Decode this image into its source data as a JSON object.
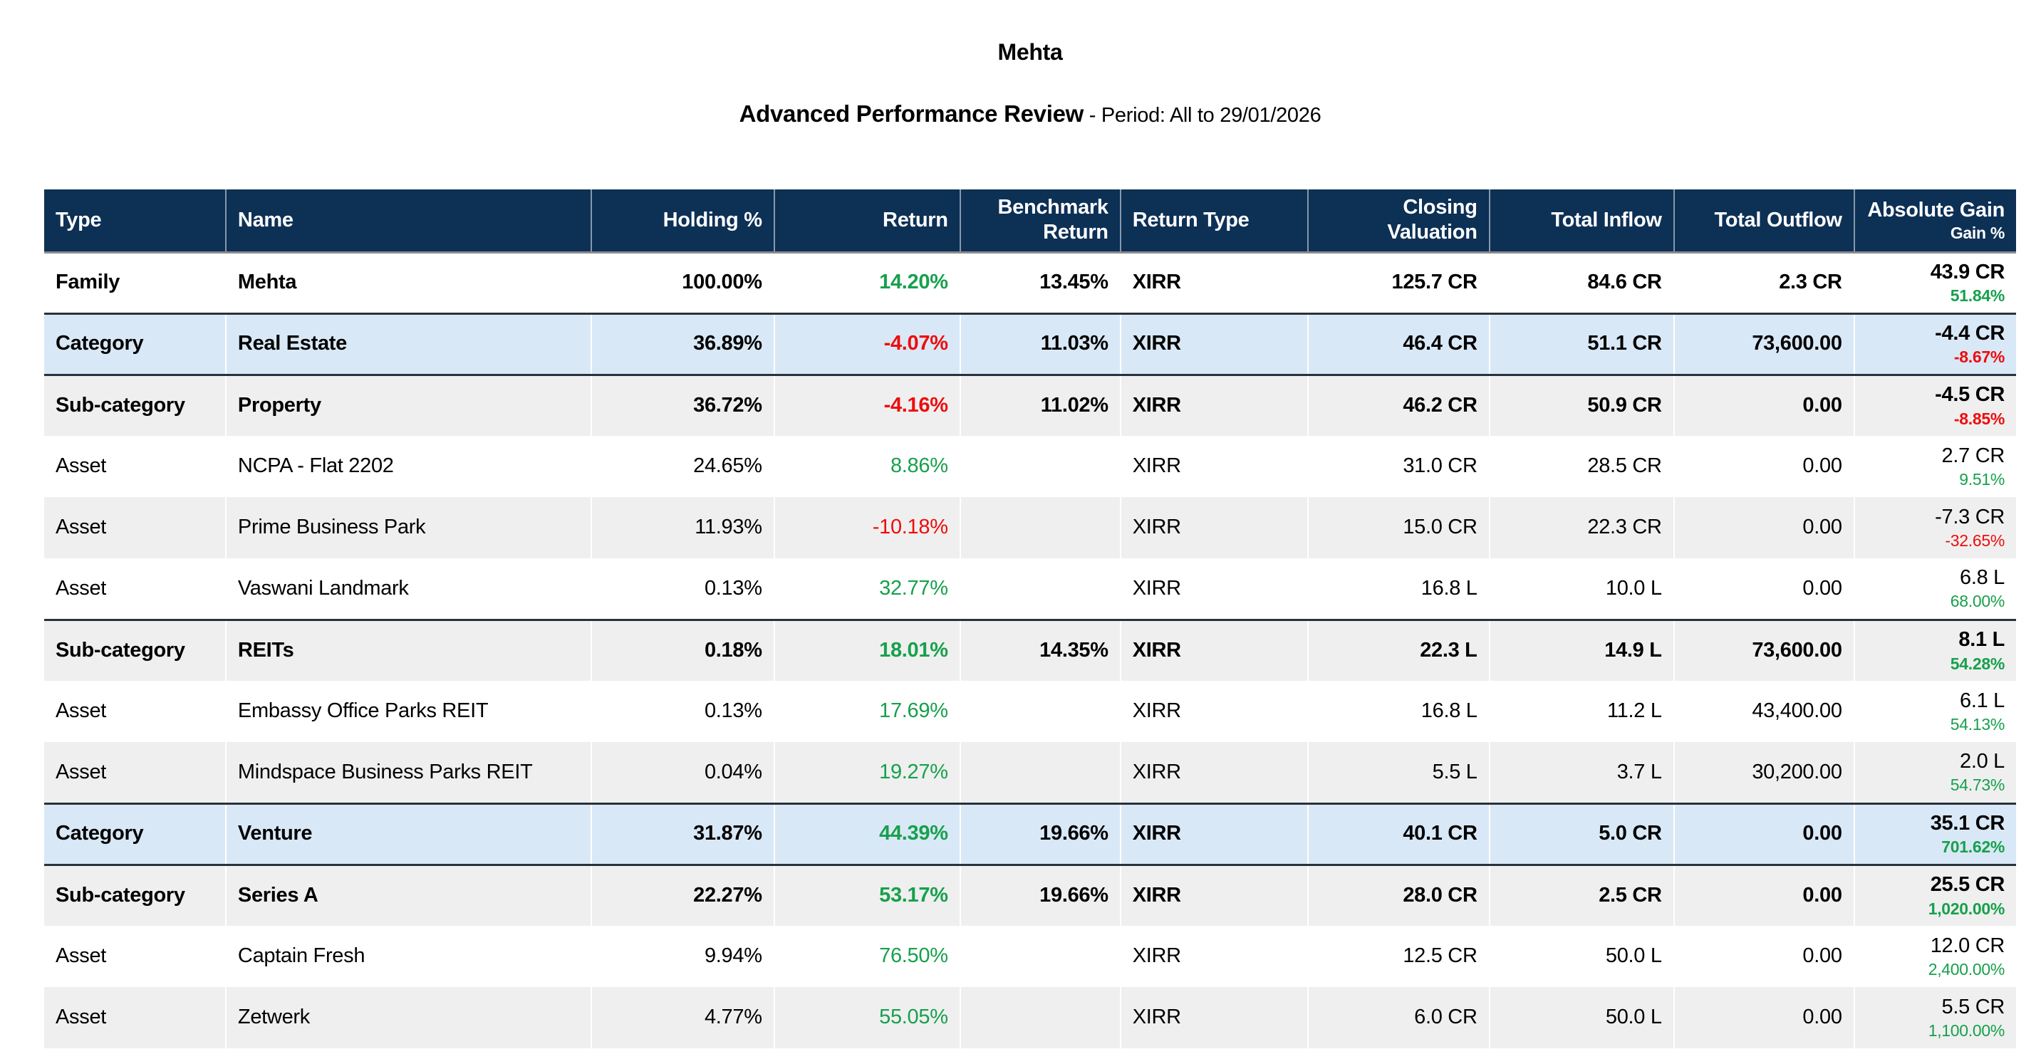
{
  "page": {
    "title": "Mehta",
    "subtitle_bold": "Advanced Performance Review",
    "subtitle_rest": " - Period: All to 29/01/2026"
  },
  "colors": {
    "header_bg": "#0d3055",
    "header_text": "#ffffff",
    "category_row_bg": "#d9e8f6",
    "stripe_row_bg": "#efefef",
    "positive": "#17a04c",
    "negative": "#ee0c0c",
    "section_border": "#28323c",
    "header_divider": "#8c8c8c"
  },
  "table": {
    "columns": [
      {
        "key": "type",
        "label": "Type",
        "align": "left"
      },
      {
        "key": "name",
        "label": "Name",
        "align": "left"
      },
      {
        "key": "holding",
        "label": "Holding %",
        "align": "right"
      },
      {
        "key": "return",
        "label": "Return",
        "align": "right"
      },
      {
        "key": "benchmark",
        "label": "Benchmark Return",
        "align": "right"
      },
      {
        "key": "return-type",
        "label": "Return Type",
        "align": "left"
      },
      {
        "key": "closing",
        "label": "Closing Valuation",
        "align": "right"
      },
      {
        "key": "inflow",
        "label": "Total Inflow",
        "align": "right"
      },
      {
        "key": "outflow",
        "label": "Total Outflow",
        "align": "right"
      },
      {
        "key": "gain",
        "label": "Absolute Gain",
        "sublabel": "Gain %",
        "align": "right"
      }
    ],
    "rows": [
      {
        "style": "family",
        "shade": "white",
        "type": "Family",
        "name": "Mehta",
        "holding": "100.00%",
        "ret": "14.20%",
        "ret_tone": "pos",
        "benchmark": "13.45%",
        "return_type": "XIRR",
        "closing": "125.7 CR",
        "inflow": "84.6 CR",
        "outflow": "2.3 CR",
        "gain": "43.9 CR",
        "gain_pct": "51.84%",
        "gain_tone": "pos"
      },
      {
        "style": "category",
        "shade": "blue",
        "type": "Category",
        "name": "Real Estate",
        "holding": "36.89%",
        "ret": "-4.07%",
        "ret_tone": "neg",
        "benchmark": "11.03%",
        "return_type": "XIRR",
        "closing": "46.4 CR",
        "inflow": "51.1 CR",
        "outflow": "73,600.00",
        "gain": "-4.4 CR",
        "gain_pct": "-8.67%",
        "gain_tone": "neg"
      },
      {
        "style": "subcategory",
        "shade": "grey",
        "type": "Sub-category",
        "name": "Property",
        "holding": "36.72%",
        "ret": "-4.16%",
        "ret_tone": "neg",
        "benchmark": "11.02%",
        "return_type": "XIRR",
        "closing": "46.2 CR",
        "inflow": "50.9 CR",
        "outflow": "0.00",
        "gain": "-4.5 CR",
        "gain_pct": "-8.85%",
        "gain_tone": "neg"
      },
      {
        "style": "asset",
        "shade": "white",
        "type": "Asset",
        "name": "NCPA - Flat 2202",
        "holding": "24.65%",
        "ret": "8.86%",
        "ret_tone": "pos",
        "benchmark": "",
        "return_type": "XIRR",
        "closing": "31.0 CR",
        "inflow": "28.5 CR",
        "outflow": "0.00",
        "gain": "2.7 CR",
        "gain_pct": "9.51%",
        "gain_tone": "pos"
      },
      {
        "style": "asset",
        "shade": "grey",
        "type": "Asset",
        "name": "Prime Business Park",
        "holding": "11.93%",
        "ret": "-10.18%",
        "ret_tone": "neg",
        "benchmark": "",
        "return_type": "XIRR",
        "closing": "15.0 CR",
        "inflow": "22.3 CR",
        "outflow": "0.00",
        "gain": "-7.3 CR",
        "gain_pct": "-32.65%",
        "gain_tone": "neg"
      },
      {
        "style": "asset",
        "shade": "white",
        "type": "Asset",
        "name": "Vaswani Landmark",
        "holding": "0.13%",
        "ret": "32.77%",
        "ret_tone": "pos",
        "benchmark": "",
        "return_type": "XIRR",
        "closing": "16.8 L",
        "inflow": "10.0 L",
        "outflow": "0.00",
        "gain": "6.8 L",
        "gain_pct": "68.00%",
        "gain_tone": "pos"
      },
      {
        "style": "subcategory",
        "shade": "grey",
        "type": "Sub-category",
        "name": "REITs",
        "holding": "0.18%",
        "ret": "18.01%",
        "ret_tone": "pos",
        "benchmark": "14.35%",
        "return_type": "XIRR",
        "closing": "22.3 L",
        "inflow": "14.9 L",
        "outflow": "73,600.00",
        "gain": "8.1 L",
        "gain_pct": "54.28%",
        "gain_tone": "pos"
      },
      {
        "style": "asset",
        "shade": "white",
        "type": "Asset",
        "name": "Embassy Office Parks REIT",
        "holding": "0.13%",
        "ret": "17.69%",
        "ret_tone": "pos",
        "benchmark": "",
        "return_type": "XIRR",
        "closing": "16.8 L",
        "inflow": "11.2 L",
        "outflow": "43,400.00",
        "gain": "6.1 L",
        "gain_pct": "54.13%",
        "gain_tone": "pos"
      },
      {
        "style": "asset",
        "shade": "grey",
        "type": "Asset",
        "name": "Mindspace Business Parks REIT",
        "holding": "0.04%",
        "ret": "19.27%",
        "ret_tone": "pos",
        "benchmark": "",
        "return_type": "XIRR",
        "closing": "5.5 L",
        "inflow": "3.7 L",
        "outflow": "30,200.00",
        "gain": "2.0 L",
        "gain_pct": "54.73%",
        "gain_tone": "pos"
      },
      {
        "style": "category",
        "shade": "blue",
        "type": "Category",
        "name": "Venture",
        "holding": "31.87%",
        "ret": "44.39%",
        "ret_tone": "pos",
        "benchmark": "19.66%",
        "return_type": "XIRR",
        "closing": "40.1 CR",
        "inflow": "5.0 CR",
        "outflow": "0.00",
        "gain": "35.1 CR",
        "gain_pct": "701.62%",
        "gain_tone": "pos"
      },
      {
        "style": "subcategory",
        "shade": "grey",
        "type": "Sub-category",
        "name": "Series A",
        "holding": "22.27%",
        "ret": "53.17%",
        "ret_tone": "pos",
        "benchmark": "19.66%",
        "return_type": "XIRR",
        "closing": "28.0 CR",
        "inflow": "2.5 CR",
        "outflow": "0.00",
        "gain": "25.5 CR",
        "gain_pct": "1,020.00%",
        "gain_tone": "pos"
      },
      {
        "style": "asset",
        "shade": "white",
        "type": "Asset",
        "name": "Captain Fresh",
        "holding": "9.94%",
        "ret": "76.50%",
        "ret_tone": "pos",
        "benchmark": "",
        "return_type": "XIRR",
        "closing": "12.5 CR",
        "inflow": "50.0 L",
        "outflow": "0.00",
        "gain": "12.0 CR",
        "gain_pct": "2,400.00%",
        "gain_tone": "pos"
      },
      {
        "style": "asset",
        "shade": "grey",
        "type": "Asset",
        "name": "Zetwerk",
        "holding": "4.77%",
        "ret": "55.05%",
        "ret_tone": "pos",
        "benchmark": "",
        "return_type": "XIRR",
        "closing": "6.0 CR",
        "inflow": "50.0 L",
        "outflow": "0.00",
        "gain": "5.5 CR",
        "gain_pct": "1,100.00%",
        "gain_tone": "pos"
      }
    ]
  }
}
